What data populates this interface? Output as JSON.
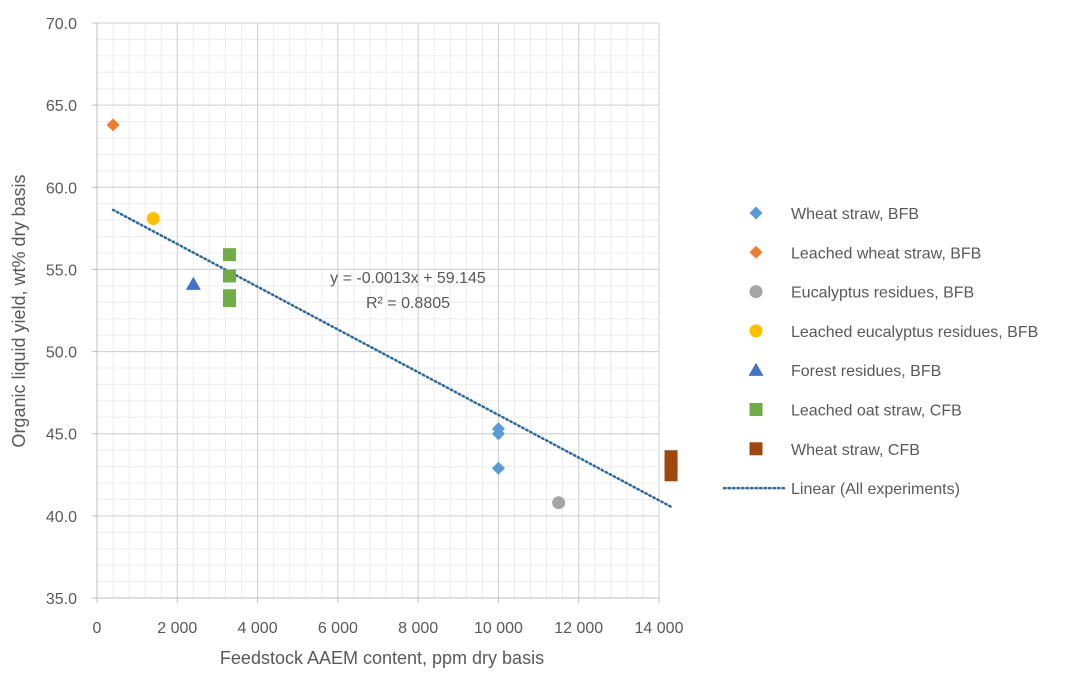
{
  "chart_data": {
    "type": "scatter",
    "title": "",
    "xlabel": "Feedstock AAEM content, ppm dry basis",
    "ylabel": "Organic liquid yield, wt% dry basis",
    "xlim": [
      0,
      14000
    ],
    "ylim": [
      35.0,
      70.0
    ],
    "x_ticks": [
      0,
      2000,
      4000,
      6000,
      8000,
      10000,
      12000,
      14000
    ],
    "x_tick_labels": [
      "0",
      "2 000",
      "4 000",
      "6 000",
      "8 000",
      "10 000",
      "12 000",
      "14 000"
    ],
    "y_ticks": [
      35,
      40,
      45,
      50,
      55,
      60,
      65,
      70
    ],
    "y_tick_labels": [
      "35.0",
      "40.0",
      "45.0",
      "50.0",
      "55.0",
      "60.0",
      "65.0",
      "70.0"
    ],
    "grid": true,
    "legend_position": "right",
    "series": [
      {
        "name": "Wheat straw, BFB",
        "marker": "diamond",
        "color": "#5B9BD5",
        "points": [
          [
            10000,
            45.3
          ],
          [
            10000,
            45.0
          ],
          [
            10000,
            42.9
          ]
        ]
      },
      {
        "name": "Leached wheat straw, BFB",
        "marker": "diamond",
        "color": "#ED7D31",
        "points": [
          [
            400,
            63.8
          ]
        ]
      },
      {
        "name": "Eucalyptus residues, BFB",
        "marker": "circle",
        "color": "#A5A5A5",
        "points": [
          [
            11500,
            40.8
          ]
        ]
      },
      {
        "name": "Leached eucalyptus residues, BFB",
        "marker": "circle",
        "color": "#FFC000",
        "points": [
          [
            1400,
            58.1
          ]
        ]
      },
      {
        "name": "Forest residues, BFB",
        "marker": "triangle",
        "color": "#4472C4",
        "points": [
          [
            2400,
            54.1
          ]
        ]
      },
      {
        "name": "Leached oat straw, CFB",
        "marker": "square",
        "color": "#70AD47",
        "points": [
          [
            3300,
            55.9
          ],
          [
            3300,
            54.6
          ],
          [
            3300,
            53.4
          ],
          [
            3300,
            53.1
          ]
        ]
      },
      {
        "name": "Wheat straw, CFB",
        "marker": "square",
        "color": "#9E480E",
        "points": [
          [
            14300,
            43.6
          ],
          [
            14300,
            43.2
          ],
          [
            14300,
            42.9
          ],
          [
            14300,
            42.5
          ]
        ]
      }
    ],
    "trendline": {
      "name": "Linear (All experiments)",
      "style": "dotted",
      "color": "#2E6A9E",
      "slope": -0.0013,
      "intercept": 59.145,
      "x_range": [
        400,
        14300
      ],
      "equation": "y = -0.0013x + 59.145",
      "r_squared": "R² = 0.8805"
    }
  }
}
